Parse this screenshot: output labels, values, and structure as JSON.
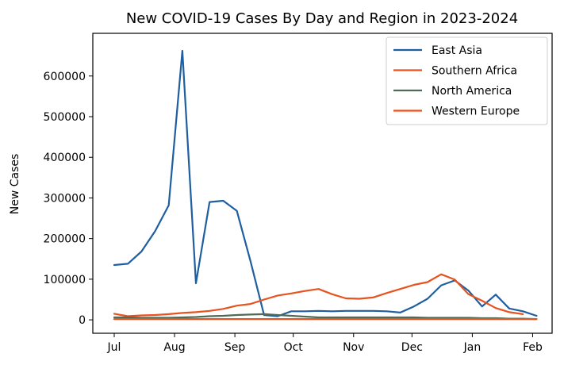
{
  "chart_data": {
    "type": "line",
    "title": "New COVID-19 Cases By Day and Region in 2023-2024",
    "xlabel": "",
    "ylabel": "New Cases",
    "x_ticks": [
      "Jul",
      "Aug",
      "Sep",
      "Oct",
      "Nov",
      "Dec",
      "Jan",
      "Feb"
    ],
    "x_tick_dates": [
      "2023-07-01",
      "2023-08-01",
      "2023-09-01",
      "2023-10-01",
      "2023-11-01",
      "2023-12-01",
      "2024-01-01",
      "2024-02-01"
    ],
    "y_ticks": [
      0,
      100000,
      200000,
      300000,
      400000,
      500000,
      600000
    ],
    "y_tick_labels": [
      "0",
      "100000",
      "200000",
      "300000",
      "400000",
      "500000",
      "600000"
    ],
    "xlim": [
      "2023-06-20",
      "2024-02-11"
    ],
    "ylim": [
      -33000,
      705000
    ],
    "grid": false,
    "legend_position": "top-right",
    "x": [
      "2023-07-01",
      "2023-07-08",
      "2023-07-15",
      "2023-07-22",
      "2023-07-29",
      "2023-08-05",
      "2023-08-12",
      "2023-08-19",
      "2023-08-26",
      "2023-09-02",
      "2023-09-09",
      "2023-09-16",
      "2023-09-23",
      "2023-09-30",
      "2023-10-07",
      "2023-10-14",
      "2023-10-21",
      "2023-10-28",
      "2023-11-04",
      "2023-11-11",
      "2023-11-18",
      "2023-11-25",
      "2023-12-02",
      "2023-12-09",
      "2023-12-16",
      "2023-12-23",
      "2023-12-30",
      "2024-01-06",
      "2024-01-13",
      "2024-01-20",
      "2024-01-27",
      "2024-02-03"
    ],
    "series": [
      {
        "name": "East Asia",
        "color": "#1f5fa0",
        "values": [
          135000,
          138000,
          168000,
          218000,
          282000,
          662000,
          90000,
          290000,
          293000,
          268000,
          145000,
          12000,
          9000,
          21000,
          21000,
          22000,
          21000,
          22000,
          22000,
          22000,
          21000,
          18000,
          33000,
          52000,
          85000,
          97000,
          72000,
          33000,
          62000,
          28000,
          21000,
          10000
        ]
      },
      {
        "name": "Southern Africa",
        "color": "#e8521f",
        "values": [
          15000,
          9000,
          11000,
          12000,
          14000,
          17000,
          19000,
          22000,
          27000,
          35000,
          39000,
          50000,
          60000,
          65000,
          71000,
          76000,
          63000,
          53000,
          52000,
          55000,
          66000,
          76000,
          86000,
          93000,
          112000,
          99000,
          63000,
          47000,
          29000,
          19000,
          14000,
          null
        ]
      },
      {
        "name": "North America",
        "color": "#4f6b55",
        "values": [
          6000,
          6000,
          5000,
          5000,
          5000,
          6000,
          7000,
          9000,
          10000,
          12000,
          13000,
          14000,
          12000,
          10000,
          8000,
          6000,
          6000,
          6000,
          6000,
          6000,
          6000,
          6000,
          6000,
          5000,
          5000,
          5000,
          5000,
          4000,
          4000,
          3000,
          3000,
          2000
        ]
      },
      {
        "name": "Western Europe",
        "color": "#e8521f",
        "values": [
          2000,
          2000,
          2000,
          2000,
          2000,
          2000,
          2000,
          2000,
          2000,
          2000,
          2000,
          2000,
          2000,
          2000,
          2000,
          2000,
          2000,
          2000,
          2000,
          2000,
          2000,
          2000,
          2000,
          2000,
          2000,
          2000,
          2000,
          2000,
          2000,
          2000,
          2000,
          2000
        ]
      }
    ]
  }
}
